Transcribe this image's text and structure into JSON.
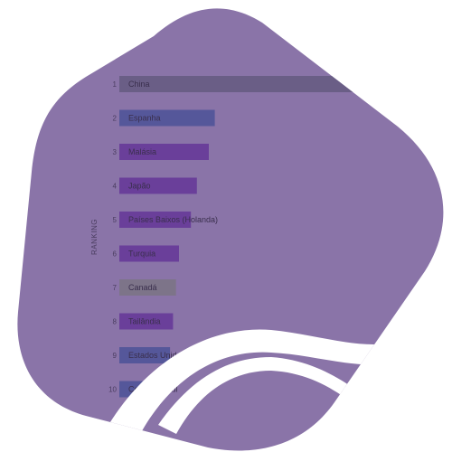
{
  "chart_data": {
    "type": "bar",
    "orientation": "horizontal",
    "ylabel": "RANKING",
    "categories": [
      "China",
      "Espanha",
      "Malásia",
      "Japão",
      "Países Baixos (Holanda)",
      "Turquia",
      "Canadá",
      "Tailândia",
      "Estados Unidos",
      "Coreia do Sul"
    ],
    "ranks": [
      "1",
      "2",
      "3",
      "4",
      "5",
      "6",
      "7",
      "8",
      "9",
      "10"
    ],
    "values": [
      100,
      32,
      30,
      26,
      24,
      20,
      19,
      18,
      17,
      14
    ],
    "colors": {
      "background_shape": "#8a74a8",
      "bar_default": "#6a5e86",
      "bar_blue": "#55579a",
      "bar_purple": "#6a3f9a",
      "bar_gray": "#7d7489",
      "swoosh": "#ffffff"
    }
  }
}
